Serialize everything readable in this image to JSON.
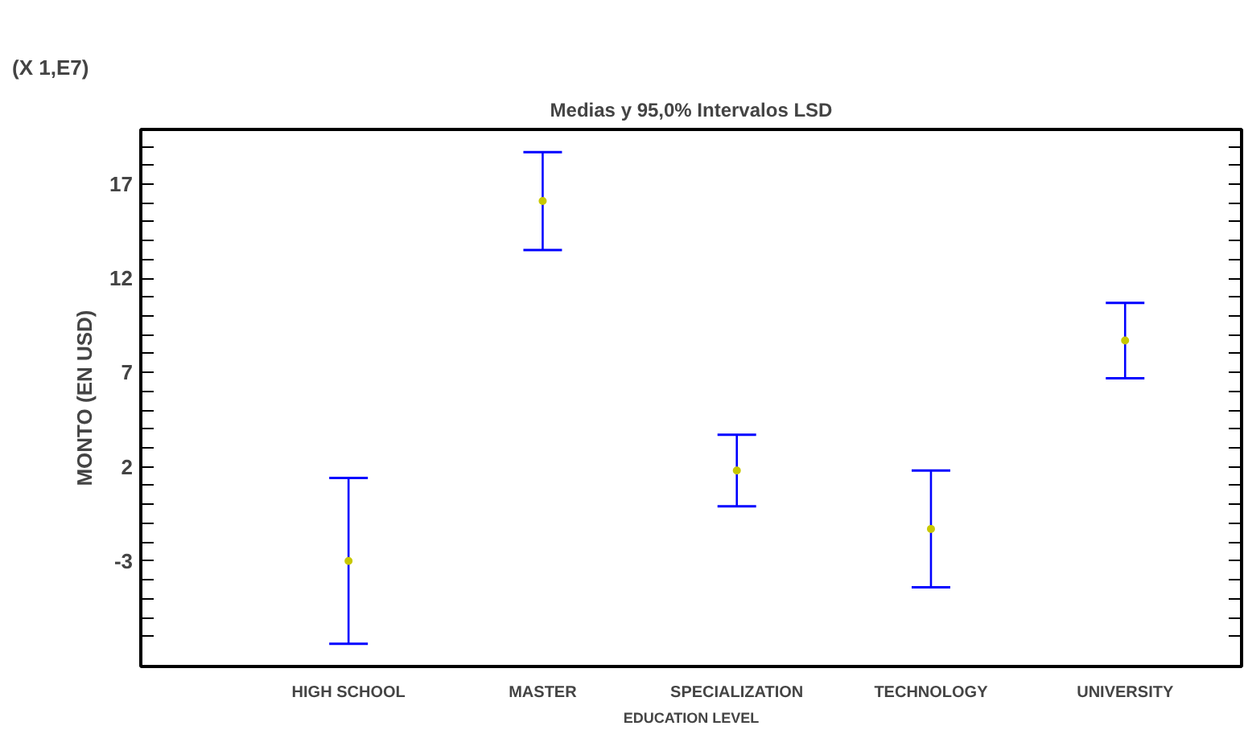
{
  "chart_data": {
    "type": "scatter",
    "title": "Medias y 95,0% Intervalos LSD",
    "xlabel": "EDUCATION LEVEL",
    "ylabel": "MONTO (EN USD)",
    "annotations": [
      "(X 1,E7)"
    ],
    "categories": [
      "HIGH SCHOOL",
      "MASTER",
      "SPECIALIZATION",
      "TECHNOLOGY",
      "UNIVERSITY"
    ],
    "series": [
      {
        "color": "#c8c800",
        "values": [
          -3.0,
          16.1,
          1.8,
          -1.3,
          8.7
        ],
        "errors": [
          4.4,
          2.6,
          1.9,
          3.1,
          2.0
        ]
      }
    ],
    "ylim": [
      -8.6,
      19.9
    ],
    "yticks": [
      {
        "value": -7,
        "label": null
      },
      {
        "value": -6,
        "label": null
      },
      {
        "value": -5,
        "label": null
      },
      {
        "value": -4,
        "label": null
      },
      -3,
      {
        "value": -2,
        "label": null
      },
      {
        "value": -1,
        "label": null
      },
      {
        "value": 0,
        "label": null
      },
      {
        "value": 1,
        "label": null
      },
      2,
      {
        "value": 3,
        "label": null
      },
      {
        "value": 4,
        "label": null
      },
      {
        "value": 5,
        "label": null
      },
      {
        "value": 6,
        "label": null
      },
      7,
      {
        "value": 8,
        "label": null
      },
      {
        "value": 9,
        "label": null
      },
      {
        "value": 10,
        "label": null
      },
      {
        "value": 11,
        "label": null
      },
      12,
      {
        "value": 13,
        "label": null
      },
      {
        "value": 14,
        "label": null
      },
      {
        "value": 15,
        "label": null
      },
      {
        "value": 16,
        "label": null
      },
      17,
      {
        "value": 18,
        "label": null
      },
      {
        "value": 19,
        "label": null
      }
    ],
    "marker": "circle",
    "grid": false
  }
}
